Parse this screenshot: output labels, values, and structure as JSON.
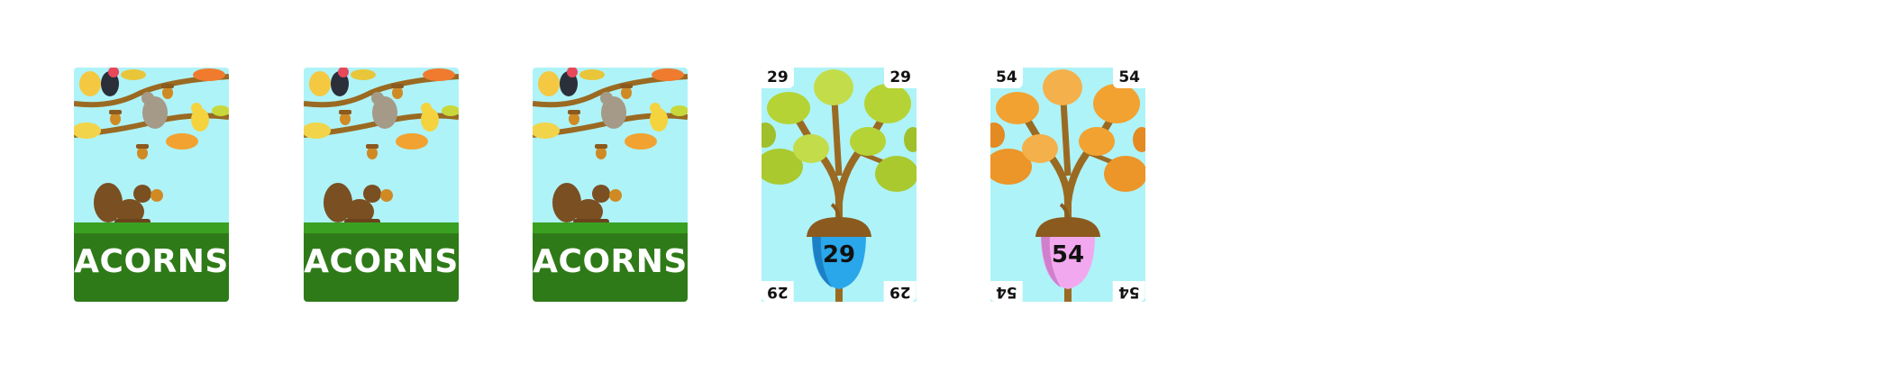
{
  "cards": [
    {
      "kind": "back",
      "title": "ACORNS"
    },
    {
      "kind": "back",
      "title": "ACORNS"
    },
    {
      "kind": "back",
      "title": "ACORNS"
    },
    {
      "kind": "face",
      "value": "29",
      "leaf_color": "#b5d334",
      "acorn_color": "#2aa7ea"
    },
    {
      "kind": "face",
      "value": "54",
      "leaf_color": "#f2a230",
      "acorn_color": "#f2a8ee"
    }
  ],
  "colors": {
    "sky": "#aef3f8",
    "grass": "#2f7a18",
    "grass_top": "#3aa021",
    "branch": "#9a6a22",
    "squirrel": "#7a4f22",
    "acorn_cap": "#8b5a1e"
  },
  "icons": [
    "oak-leaf-icon",
    "acorn-icon",
    "squirrel-icon",
    "bird-icon"
  ]
}
